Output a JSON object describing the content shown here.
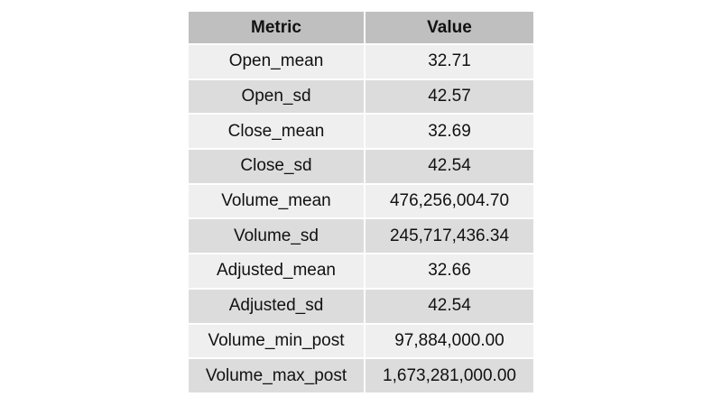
{
  "chart_data": {
    "type": "table",
    "columns": [
      "Metric",
      "Value"
    ],
    "rows": [
      [
        "Open_mean",
        "32.71"
      ],
      [
        "Open_sd",
        "42.57"
      ],
      [
        "Close_mean",
        "32.69"
      ],
      [
        "Close_sd",
        "42.54"
      ],
      [
        "Volume_mean",
        "476,256,004.70"
      ],
      [
        "Volume_sd",
        "245,717,436.34"
      ],
      [
        "Adjusted_mean",
        "32.66"
      ],
      [
        "Adjusted_sd",
        "42.54"
      ],
      [
        "Volume_min_post",
        "97,884,000.00"
      ],
      [
        "Volume_max_post",
        "1,673,281,000.00"
      ]
    ],
    "colors": {
      "header_bg": "#bfbfbf",
      "row_light": "#efefef",
      "row_dark": "#dcdcdc",
      "text": "#111111"
    }
  }
}
